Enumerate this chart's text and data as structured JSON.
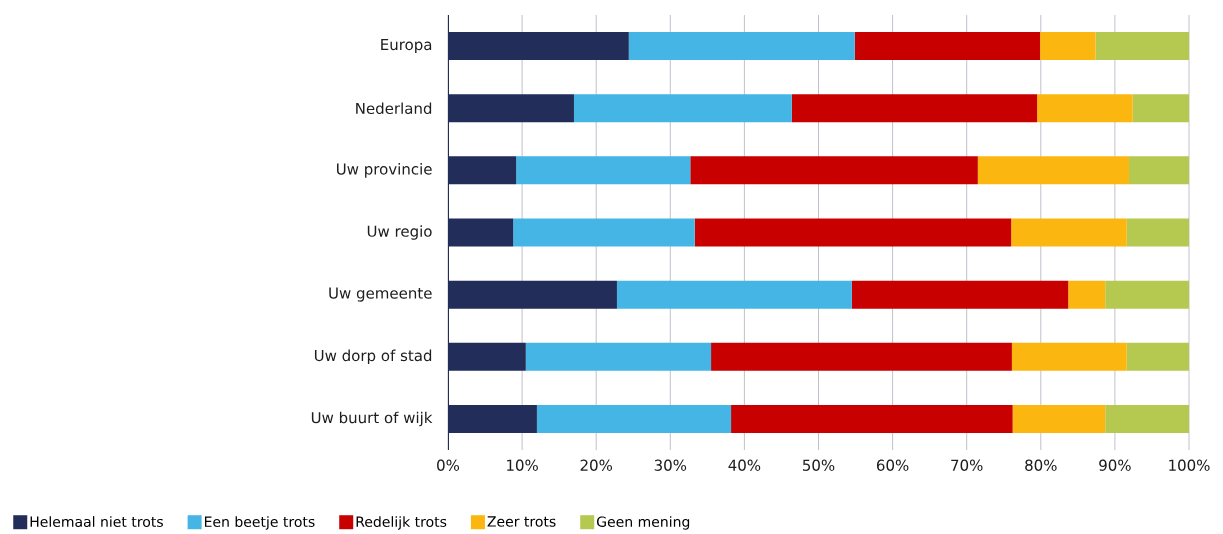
{
  "chart_data": {
    "type": "bar",
    "orientation": "horizontal",
    "stacked": true,
    "categories": [
      "Europa",
      "Nederland",
      "Uw provincie",
      "Uw regio",
      "Uw gemeente",
      "Uw dorp of stad",
      "Uw buurt of wijk"
    ],
    "series": [
      {
        "name": "Helemaal niet trots",
        "color": "#222d5a",
        "values": [
          24.4,
          17.0,
          9.2,
          8.8,
          22.8,
          10.5,
          12.0
        ]
      },
      {
        "name": "Een beetje trots",
        "color": "#45b5e5",
        "values": [
          30.5,
          29.4,
          23.5,
          24.5,
          31.7,
          25.0,
          26.2
        ]
      },
      {
        "name": "Redelijk trots",
        "color": "#c80000",
        "values": [
          25.0,
          33.1,
          38.8,
          42.7,
          29.2,
          40.6,
          38.0
        ]
      },
      {
        "name": "Zeer trots",
        "color": "#fbb710",
        "values": [
          7.5,
          12.9,
          20.4,
          15.6,
          5.0,
          15.5,
          12.5
        ]
      },
      {
        "name": "Geen mening",
        "color": "#b5c850",
        "values": [
          12.6,
          7.6,
          8.1,
          8.4,
          11.3,
          8.4,
          11.3
        ]
      }
    ],
    "xlim": [
      0,
      100
    ],
    "xticks": [
      {
        "value": 0,
        "label": "0%"
      },
      {
        "value": 10,
        "label": "10%"
      },
      {
        "value": 20,
        "label": "20%"
      },
      {
        "value": 30,
        "label": "30%"
      },
      {
        "value": 40,
        "label": "40%"
      },
      {
        "value": 50,
        "label": "50%"
      },
      {
        "value": 60,
        "label": "60%"
      },
      {
        "value": 70,
        "label": "70%"
      },
      {
        "value": 80,
        "label": "80%"
      },
      {
        "value": 90,
        "label": "90%"
      },
      {
        "value": 100,
        "label": "100%"
      }
    ],
    "grid": "x",
    "legend": "bottom"
  }
}
